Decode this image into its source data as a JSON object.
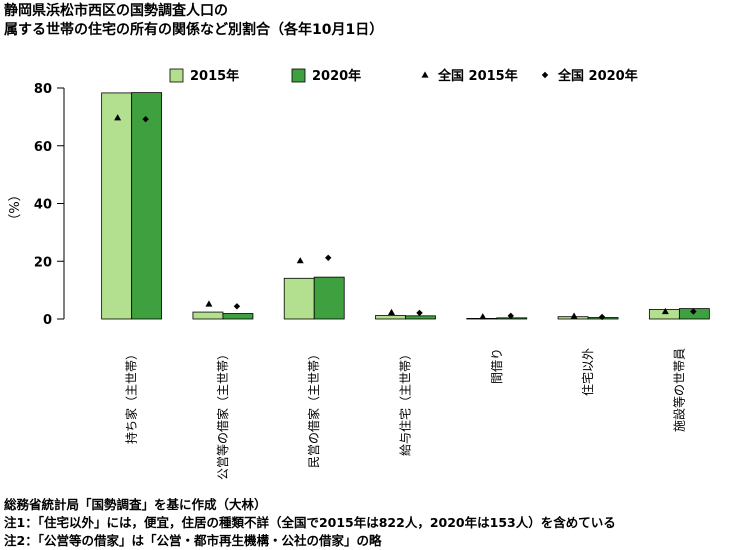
{
  "title": {
    "line1": "静岡県浜松市西区の国勢調査人口の",
    "line2": "属する世帯の住宅の所有の関係など別割合（各年10月1日）"
  },
  "notes": {
    "source": "総務省統計局「国勢調査」を基に作成（大林）",
    "note1": "注1：「住宅以外」には，便宜，住居の種類不詳（全国で2015年は822人，2020年は153人）を含めている",
    "note2": "注2：「公営等の借家」は「公営・都市再生機構・公社の借家」の略"
  },
  "colors": {
    "bar2015": "#b3e08f",
    "bar2020": "#3fa03f",
    "marker": "#000000"
  },
  "chart_data": {
    "type": "bar",
    "ylabel": "（%）",
    "ylim": [
      0,
      80
    ],
    "yticks": [
      0,
      20,
      40,
      60,
      80
    ],
    "categories": [
      "持ち家（主世帯）",
      "公営等の借家（主世帯）",
      "民営の借家（主世帯）",
      "給与住宅（主世帯）",
      "間借り",
      "住宅以外",
      "施設等の世帯員"
    ],
    "series": [
      {
        "name": "2015年",
        "kind": "bar",
        "values": [
          78.3,
          2.4,
          14.1,
          1.2,
          0.2,
          0.8,
          3.3
        ]
      },
      {
        "name": "2020年",
        "kind": "bar",
        "values": [
          78.4,
          1.9,
          14.5,
          1.1,
          0.4,
          0.5,
          3.6
        ]
      },
      {
        "name": "全国 2015年",
        "kind": "marker",
        "marker": "triangle",
        "values": [
          69.7,
          5.2,
          20.2,
          2.3,
          0.8,
          1.0,
          2.6
        ]
      },
      {
        "name": "全国 2020年",
        "kind": "marker",
        "marker": "diamond",
        "values": [
          69.2,
          4.4,
          21.2,
          2.1,
          1.1,
          0.7,
          2.6
        ]
      }
    ],
    "legend_position": "top"
  }
}
